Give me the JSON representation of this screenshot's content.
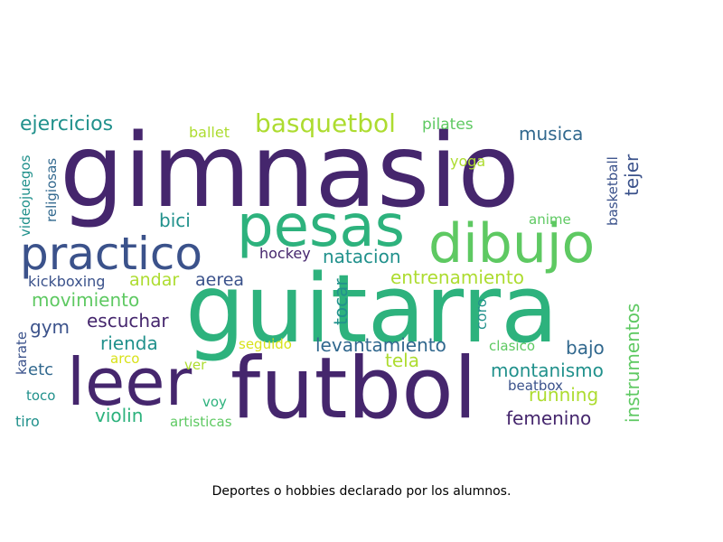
{
  "caption": "Deportes o hobbies declarado por los alumnos.",
  "palette": {
    "dark_purple": "#45266d",
    "indigo": "#3b528b",
    "blue": "#31688e",
    "teal": "#21918c",
    "green": "#2db27d",
    "light_green": "#5ec962",
    "yellow_green": "#addc30",
    "yellow": "#d8e219"
  },
  "words": [
    {
      "text": "gimnasio"
    },
    {
      "text": "guitarra"
    },
    {
      "text": "futbol"
    },
    {
      "text": "pesas"
    },
    {
      "text": "dibujo"
    },
    {
      "text": "leer"
    },
    {
      "text": "practico"
    },
    {
      "text": "basquetbol"
    },
    {
      "text": "ejercicios"
    },
    {
      "text": "musica"
    },
    {
      "text": "pilates"
    },
    {
      "text": "ballet"
    },
    {
      "text": "videojuegos"
    },
    {
      "text": "religiosas"
    },
    {
      "text": "yoga"
    },
    {
      "text": "basketball"
    },
    {
      "text": "tejer"
    },
    {
      "text": "bici"
    },
    {
      "text": "anime"
    },
    {
      "text": "hockey"
    },
    {
      "text": "natacion"
    },
    {
      "text": "kickboxing"
    },
    {
      "text": "andar"
    },
    {
      "text": "aerea"
    },
    {
      "text": "entrenamiento"
    },
    {
      "text": "movimiento"
    },
    {
      "text": "tocar"
    },
    {
      "text": "coro"
    },
    {
      "text": "instrumentos"
    },
    {
      "text": "gym"
    },
    {
      "text": "escuchar"
    },
    {
      "text": "rienda"
    },
    {
      "text": "seguido"
    },
    {
      "text": "levantamiento"
    },
    {
      "text": "clasico"
    },
    {
      "text": "bajo"
    },
    {
      "text": "karate"
    },
    {
      "text": "arco"
    },
    {
      "text": "etc"
    },
    {
      "text": "ver"
    },
    {
      "text": "tela"
    },
    {
      "text": "montanismo"
    },
    {
      "text": "beatbox"
    },
    {
      "text": "toco"
    },
    {
      "text": "voy"
    },
    {
      "text": "running"
    },
    {
      "text": "violin"
    },
    {
      "text": "tiro"
    },
    {
      "text": "artisticas"
    },
    {
      "text": "femenino"
    }
  ]
}
